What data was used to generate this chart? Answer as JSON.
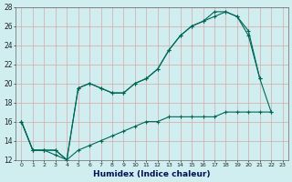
{
  "xlabel": "Humidex (Indice chaleur)",
  "background_color": "#d0eef0",
  "grid_color": "#d8a8a8",
  "line_color": "#006655",
  "xlim": [
    -0.5,
    23.5
  ],
  "ylim": [
    12,
    28
  ],
  "xticks": [
    0,
    1,
    2,
    3,
    4,
    5,
    6,
    7,
    8,
    9,
    10,
    11,
    12,
    13,
    14,
    15,
    16,
    17,
    18,
    19,
    20,
    21,
    22,
    23
  ],
  "yticks": [
    12,
    14,
    16,
    18,
    20,
    22,
    24,
    26,
    28
  ],
  "line1_x": [
    0,
    1,
    2,
    3,
    4,
    5,
    6,
    7,
    8,
    9,
    10,
    11,
    12,
    13,
    14,
    15,
    16,
    17,
    18,
    19,
    20,
    21
  ],
  "line1_y": [
    16,
    13,
    13,
    13,
    12,
    19.5,
    20,
    19.5,
    19,
    19,
    20,
    20.5,
    21.5,
    23.5,
    25,
    26,
    26.5,
    27.5,
    27.5,
    27,
    25,
    20.5
  ],
  "line2_x": [
    0,
    1,
    2,
    3,
    4,
    5,
    6,
    7,
    8,
    9,
    10,
    11,
    12,
    13,
    14,
    15,
    16,
    17,
    18,
    19,
    20,
    21,
    22
  ],
  "line2_y": [
    16,
    13,
    13,
    13,
    12,
    19.5,
    20,
    19.5,
    19,
    19,
    20,
    20.5,
    21.5,
    23.5,
    25,
    26,
    26.5,
    27,
    27.5,
    27,
    25.5,
    20.5,
    17
  ],
  "line3_x": [
    0,
    1,
    2,
    3,
    4,
    5,
    6,
    7,
    8,
    9,
    10,
    11,
    12,
    13,
    14,
    15,
    16,
    17,
    18,
    19,
    20,
    21,
    22
  ],
  "line3_y": [
    16,
    13,
    13,
    12.5,
    12,
    13,
    13.5,
    14,
    14.5,
    15,
    15.5,
    16,
    16,
    16.5,
    16.5,
    16.5,
    16.5,
    16.5,
    17,
    17,
    17,
    17,
    17
  ]
}
